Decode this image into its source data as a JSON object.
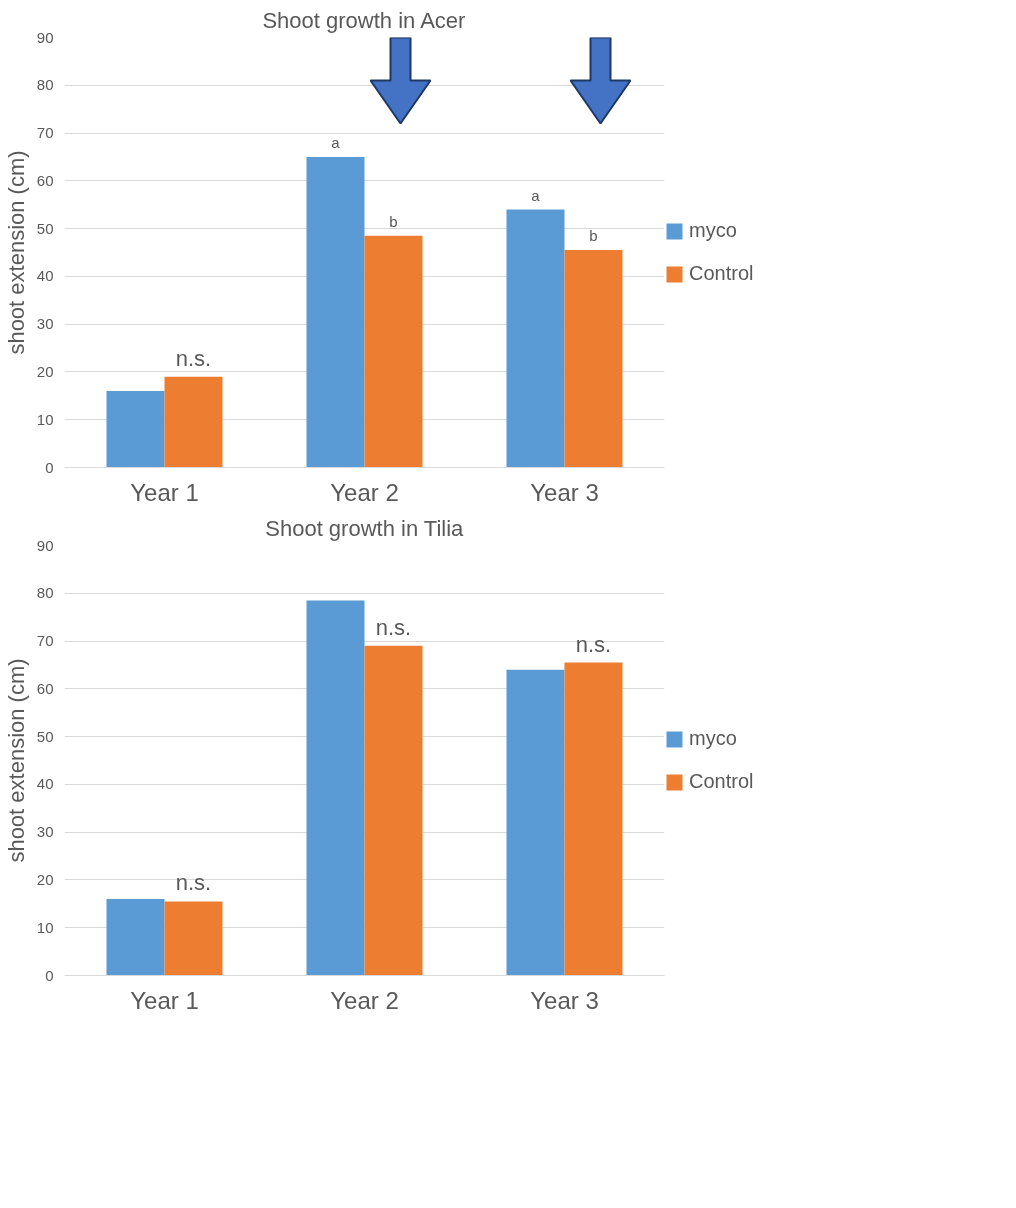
{
  "chart_data": [
    {
      "type": "bar",
      "title": "Shoot growth in Acer",
      "ylabel": "shoot extension (cm)",
      "categories": [
        "Year 1",
        "Year 2",
        "Year 3"
      ],
      "series": [
        {
          "name": "myco",
          "color": "#5b9bd5",
          "values": [
            16,
            65,
            54
          ]
        },
        {
          "name": "Control",
          "color": "#ed7d31",
          "values": [
            19,
            48.5,
            45.5
          ]
        }
      ],
      "ylim": [
        0,
        90
      ],
      "yticks": [
        0,
        10,
        20,
        30,
        40,
        50,
        60,
        70,
        80,
        90
      ],
      "grid": "y",
      "legend": "right",
      "annotations": [
        {
          "text": "n.s.",
          "x": "Year 1",
          "y": 19
        },
        {
          "text": "a",
          "x": "Year 2",
          "y": 65
        },
        {
          "text": "b",
          "x": "Year 2",
          "y": 48.5
        },
        {
          "text": "a",
          "x": "Year 3",
          "y": 54
        },
        {
          "text": "b",
          "x": "Year 3",
          "y": 45.5
        }
      ]
    },
    {
      "type": "bar",
      "title": "Shoot growth in Tilia",
      "ylabel": "shoot extension (cm)",
      "categories": [
        "Year 1",
        "Year 2",
        "Year 3"
      ],
      "series": [
        {
          "name": "myco",
          "color": "#5b9bd5",
          "values": [
            16,
            78.5,
            64
          ]
        },
        {
          "name": "Control",
          "color": "#ed7d31",
          "values": [
            15.5,
            69,
            65.5
          ]
        }
      ],
      "ylim": [
        0,
        90
      ],
      "yticks": [
        0,
        10,
        20,
        30,
        40,
        50,
        60,
        70,
        80,
        90
      ],
      "grid": "y",
      "legend": "right",
      "annotations": [
        {
          "text": "n.s.",
          "x": "Year 1",
          "y": 15.5
        },
        {
          "text": "n.s.",
          "x": "Year 2",
          "y": 69
        },
        {
          "text": "n.s.",
          "x": "Year 3",
          "y": 65.5
        }
      ]
    }
  ]
}
